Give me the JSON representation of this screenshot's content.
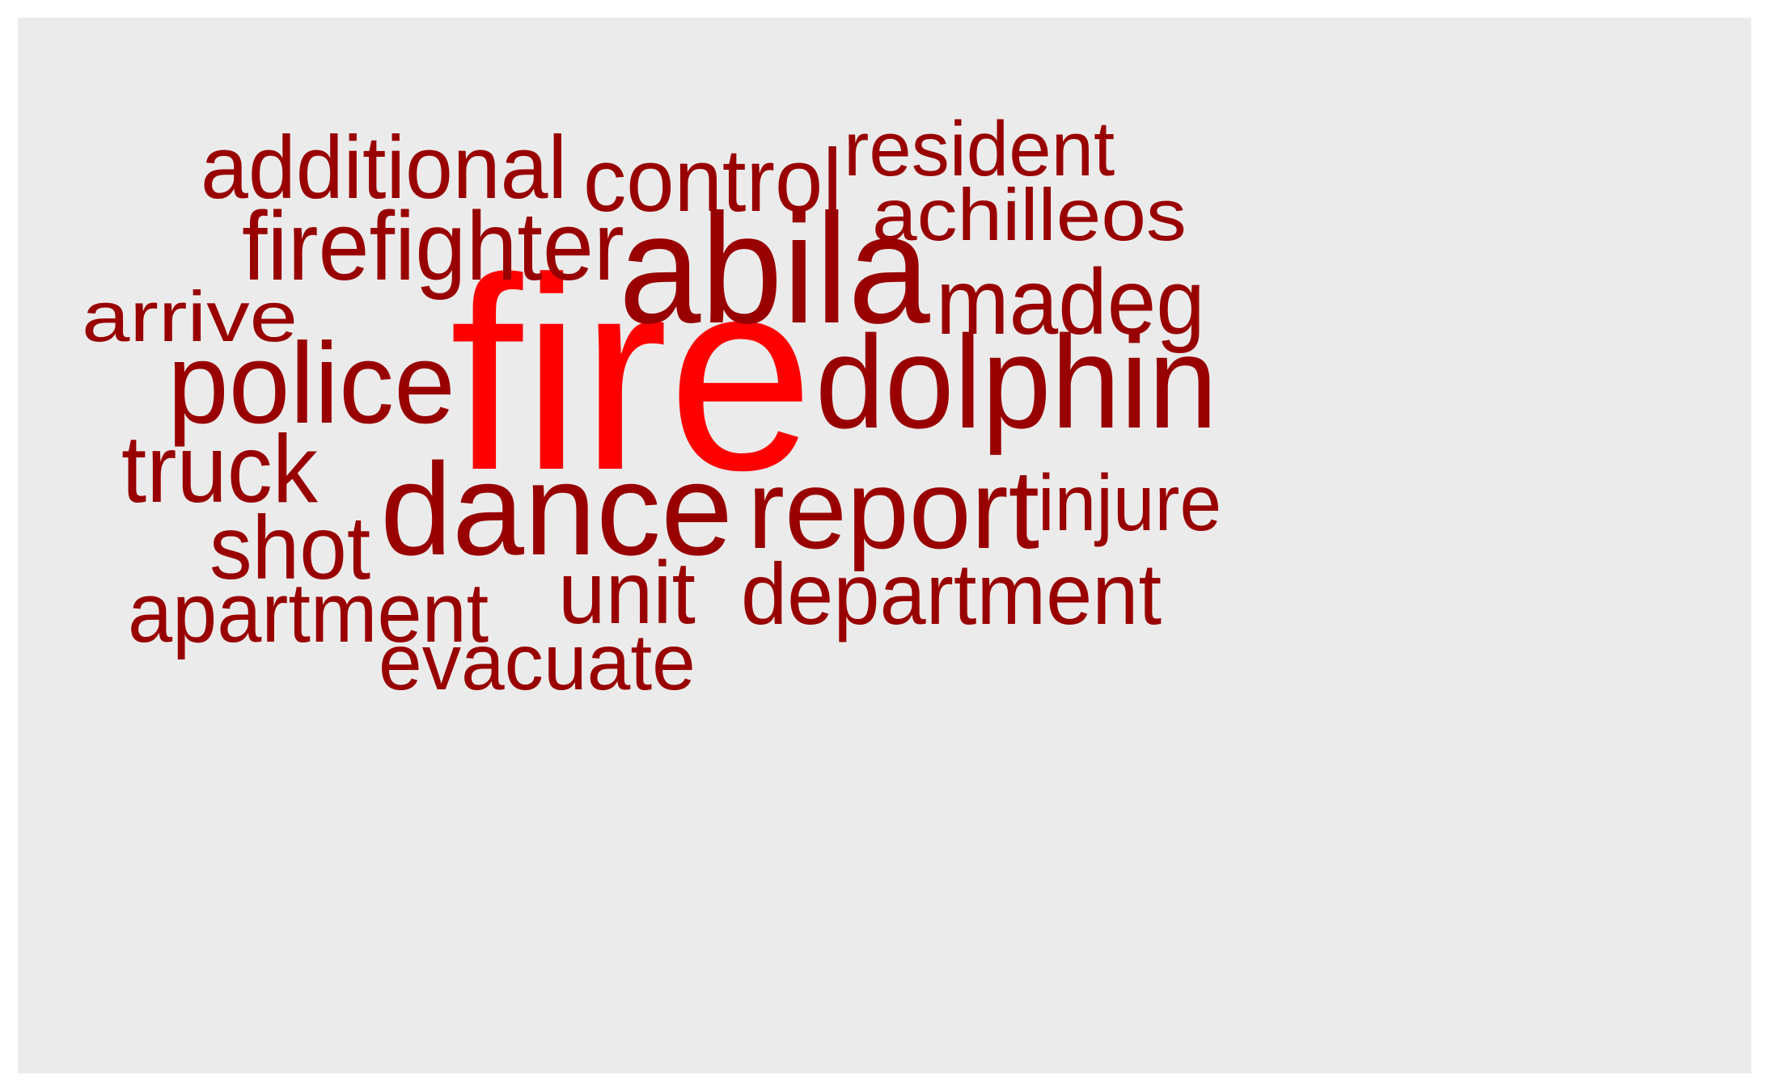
{
  "wordcloud": {
    "colors": {
      "background": "#ebebeb",
      "primary_word": "#ff0000",
      "secondary_words": "#990000"
    },
    "words": [
      {
        "id": "fire",
        "text": "fire",
        "color": "#ff0000"
      },
      {
        "id": "abila",
        "text": "abila",
        "color": "#990000"
      },
      {
        "id": "dolphin",
        "text": "dolphin",
        "color": "#990000"
      },
      {
        "id": "dance",
        "text": "dance",
        "color": "#990000"
      },
      {
        "id": "report",
        "text": "report",
        "color": "#990000"
      },
      {
        "id": "police",
        "text": "police",
        "color": "#990000"
      },
      {
        "id": "madeg",
        "text": "madeg",
        "color": "#990000"
      },
      {
        "id": "firefighter",
        "text": "firefighter",
        "color": "#990000"
      },
      {
        "id": "additional",
        "text": "additional",
        "color": "#990000"
      },
      {
        "id": "control",
        "text": "control",
        "color": "#990000"
      },
      {
        "id": "resident",
        "text": "resident",
        "color": "#990000"
      },
      {
        "id": "achilleos",
        "text": "achilleos",
        "color": "#990000"
      },
      {
        "id": "arrive",
        "text": "arrive",
        "color": "#990000"
      },
      {
        "id": "truck",
        "text": "truck",
        "color": "#990000"
      },
      {
        "id": "shot",
        "text": "shot",
        "color": "#990000"
      },
      {
        "id": "apartment",
        "text": "apartment",
        "color": "#990000"
      },
      {
        "id": "unit",
        "text": "unit",
        "color": "#990000"
      },
      {
        "id": "department",
        "text": "department",
        "color": "#990000"
      },
      {
        "id": "evacuate",
        "text": "evacuate",
        "color": "#990000"
      },
      {
        "id": "injure",
        "text": "injure",
        "color": "#990000"
      }
    ]
  }
}
